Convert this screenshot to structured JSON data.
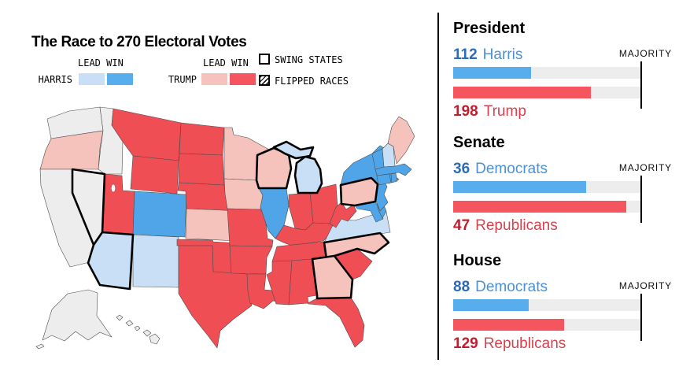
{
  "title": "The Race to 270 Electoral Votes",
  "legend": {
    "lead_win": "LEAD WIN",
    "harris": "HARRIS",
    "trump": "TRUMP",
    "swing": "SWING STATES",
    "flipped": "FLIPPED RACES"
  },
  "colors": {
    "no_result": "#EDEDED",
    "lead_harris": "#C9DFF6",
    "win_harris": "#4FA5E7",
    "lead_trump": "#F5C2BC",
    "win_trump": "#EF4E55",
    "map_border": "#4D4D4D",
    "swing_border": "#000000",
    "bar_track": "#EDEDED",
    "bar_dem": "#58AEEC",
    "bar_rep": "#F4555E",
    "dem_value": "#2A6CB5",
    "dem_name": "#4E90D4",
    "rep_value": "#BE1E2D",
    "rep_name": "#D8414E"
  },
  "panel": {
    "sections": [
      {
        "id": "president",
        "heading": "President",
        "majority": 270,
        "majority_label": "MAJORITY",
        "dem": {
          "value": 112,
          "name": "Harris"
        },
        "rep": {
          "value": 198,
          "name": "Trump"
        }
      },
      {
        "id": "senate",
        "heading": "Senate",
        "majority": 51,
        "majority_label": "MAJORITY",
        "dem": {
          "value": 36,
          "name": "Democrats"
        },
        "rep": {
          "value": 47,
          "name": "Republicans"
        }
      },
      {
        "id": "house",
        "heading": "House",
        "majority": 218,
        "majority_label": "MAJORITY",
        "dem": {
          "value": 88,
          "name": "Democrats"
        },
        "rep": {
          "value": 129,
          "name": "Republicans"
        }
      }
    ]
  },
  "map": {
    "states": [
      {
        "id": "WA",
        "status": "no_result",
        "swing": false
      },
      {
        "id": "OR",
        "status": "lead_trump",
        "swing": false
      },
      {
        "id": "CA",
        "status": "no_result",
        "swing": false
      },
      {
        "id": "ID",
        "status": "no_result",
        "swing": false
      },
      {
        "id": "MT",
        "status": "win_trump",
        "swing": false
      },
      {
        "id": "WY",
        "status": "win_trump",
        "swing": false
      },
      {
        "id": "UT",
        "status": "win_trump",
        "swing": false
      },
      {
        "id": "CO",
        "status": "win_harris",
        "swing": false
      },
      {
        "id": "NM",
        "status": "lead_harris",
        "swing": false
      },
      {
        "id": "ND",
        "status": "win_trump",
        "swing": false
      },
      {
        "id": "SD",
        "status": "win_trump",
        "swing": false
      },
      {
        "id": "NE",
        "status": "win_trump",
        "swing": false
      },
      {
        "id": "KS",
        "status": "lead_trump",
        "swing": false
      },
      {
        "id": "OK",
        "status": "win_trump",
        "swing": false
      },
      {
        "id": "TX",
        "status": "win_trump",
        "swing": false
      },
      {
        "id": "MN",
        "status": "lead_trump",
        "swing": false
      },
      {
        "id": "IA",
        "status": "lead_trump",
        "swing": false
      },
      {
        "id": "MO",
        "status": "win_trump",
        "swing": false
      },
      {
        "id": "AR",
        "status": "win_trump",
        "swing": false
      },
      {
        "id": "LA",
        "status": "win_trump",
        "swing": false
      },
      {
        "id": "IL",
        "status": "win_harris",
        "swing": false
      },
      {
        "id": "IN",
        "status": "win_trump",
        "swing": false
      },
      {
        "id": "OH",
        "status": "win_trump",
        "swing": false
      },
      {
        "id": "KY",
        "status": "win_trump",
        "swing": false
      },
      {
        "id": "TN",
        "status": "win_trump",
        "swing": false
      },
      {
        "id": "MS",
        "status": "win_trump",
        "swing": false
      },
      {
        "id": "AL",
        "status": "win_trump",
        "swing": false
      },
      {
        "id": "SC",
        "status": "win_trump",
        "swing": false
      },
      {
        "id": "FL",
        "status": "win_trump",
        "swing": false
      },
      {
        "id": "VA",
        "status": "lead_harris",
        "swing": false
      },
      {
        "id": "WV",
        "status": "win_trump",
        "swing": false
      },
      {
        "id": "MD",
        "status": "win_harris",
        "swing": false
      },
      {
        "id": "DE",
        "status": "win_harris",
        "swing": false
      },
      {
        "id": "DC",
        "status": "win_harris",
        "swing": false
      },
      {
        "id": "NJ",
        "status": "win_harris",
        "swing": false
      },
      {
        "id": "NY",
        "status": "win_harris",
        "swing": false
      },
      {
        "id": "VT",
        "status": "win_harris",
        "swing": false
      },
      {
        "id": "NH",
        "status": "lead_harris",
        "swing": false
      },
      {
        "id": "ME",
        "status": "lead_trump",
        "swing": false
      },
      {
        "id": "MA",
        "status": "win_harris",
        "swing": false
      },
      {
        "id": "CT",
        "status": "win_harris",
        "swing": false
      },
      {
        "id": "RI",
        "status": "win_harris",
        "swing": false
      },
      {
        "id": "AK",
        "status": "no_result",
        "swing": false
      },
      {
        "id": "HI",
        "status": "no_result",
        "swing": false
      },
      {
        "id": "NV",
        "status": "no_result",
        "swing": true
      },
      {
        "id": "AZ",
        "status": "lead_harris",
        "swing": true
      },
      {
        "id": "WI",
        "status": "lead_trump",
        "swing": true
      },
      {
        "id": "MI",
        "status": "lead_harris",
        "swing": true
      },
      {
        "id": "PA",
        "status": "lead_trump",
        "swing": true
      },
      {
        "id": "NC",
        "status": "lead_trump",
        "swing": true
      },
      {
        "id": "GA",
        "status": "lead_trump",
        "swing": true
      }
    ]
  },
  "chart_data": [
    {
      "type": "bar",
      "orientation": "horizontal",
      "title": "President",
      "categories": [
        "Harris",
        "Trump"
      ],
      "values": [
        112,
        198
      ],
      "colors": [
        "#58AEEC",
        "#F4555E"
      ],
      "target": 270,
      "target_label": "MAJORITY"
    },
    {
      "type": "bar",
      "orientation": "horizontal",
      "title": "Senate",
      "categories": [
        "Democrats",
        "Republicans"
      ],
      "values": [
        36,
        47
      ],
      "colors": [
        "#58AEEC",
        "#F4555E"
      ],
      "target": 51,
      "target_label": "MAJORITY"
    },
    {
      "type": "bar",
      "orientation": "horizontal",
      "title": "House",
      "categories": [
        "Democrats",
        "Republicans"
      ],
      "values": [
        88,
        129
      ],
      "colors": [
        "#58AEEC",
        "#F4555E"
      ],
      "target": 218,
      "target_label": "MAJORITY"
    },
    {
      "type": "choropleth",
      "title": "The Race to 270 Electoral Votes",
      "states_by_status": {
        "no_result": [
          "WA",
          "CA",
          "ID",
          "NV",
          "AK",
          "HI"
        ],
        "lead_trump": [
          "OR",
          "MN",
          "IA",
          "KS",
          "ME",
          "WI",
          "PA",
          "NC",
          "GA"
        ],
        "win_trump": [
          "MT",
          "WY",
          "UT",
          "ND",
          "SD",
          "NE",
          "OK",
          "TX",
          "MO",
          "AR",
          "LA",
          "MS",
          "AL",
          "TN",
          "KY",
          "IN",
          "OH",
          "WV",
          "SC",
          "FL"
        ],
        "lead_harris": [
          "NM",
          "VA",
          "NH",
          "AZ",
          "MI"
        ],
        "win_harris": [
          "CO",
          "IL",
          "NY",
          "NJ",
          "MD",
          "DE",
          "DC",
          "VT",
          "MA",
          "CT",
          "RI"
        ]
      },
      "swing_states": [
        "NV",
        "AZ",
        "WI",
        "MI",
        "PA",
        "NC",
        "GA"
      ],
      "flipped_races": []
    }
  ]
}
